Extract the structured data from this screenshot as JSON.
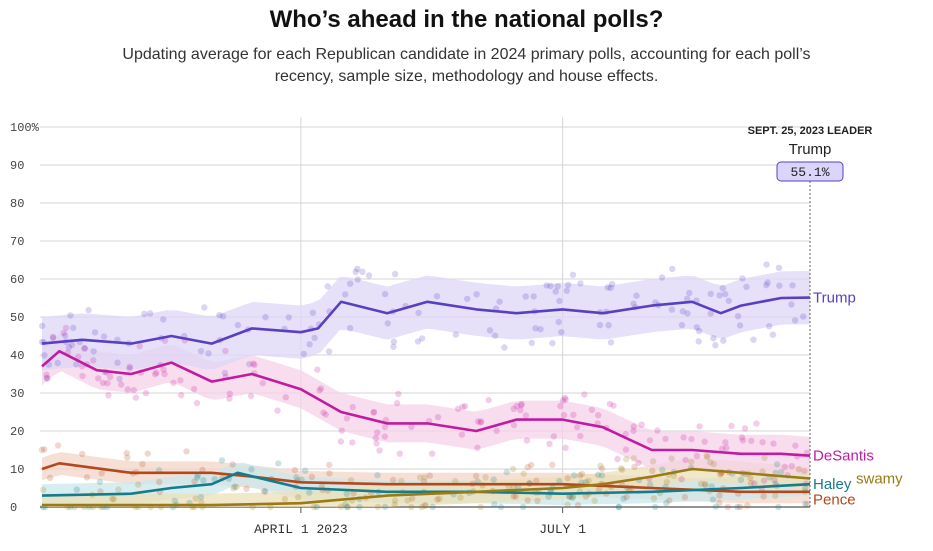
{
  "chart_data": {
    "type": "line",
    "title": "Who’s ahead in the national polls?",
    "subtitle": "Updating average for each Republican candidate in 2024 primary polls, accounting for each poll’s recency, sample size, methodology and house effects.",
    "y_ticks": [
      "100%",
      "90",
      "80",
      "70",
      "60",
      "50",
      "40",
      "30",
      "20",
      "10",
      "0"
    ],
    "ylim": [
      0,
      100
    ],
    "x_ticks": [
      "APRIL 1 2023",
      "JULY 1"
    ],
    "x_tick_dates": [
      "2023-04-01",
      "2023-07-01"
    ],
    "xlim": [
      "2023-01-01",
      "2023-09-25"
    ],
    "grid": true,
    "leader": {
      "heading": "SEPT. 25, 2023 LEADER",
      "name": "Trump",
      "value": "55.1%",
      "date": "2023-09-25"
    },
    "series": [
      {
        "name": "Trump",
        "color": "#5a3fc0",
        "band": "#ddd6f7",
        "x": [
          "2023-01-01",
          "2023-01-15",
          "2023-02-01",
          "2023-02-15",
          "2023-03-01",
          "2023-03-15",
          "2023-04-01",
          "2023-04-07",
          "2023-04-15",
          "2023-05-01",
          "2023-05-15",
          "2023-06-01",
          "2023-06-15",
          "2023-07-01",
          "2023-07-15",
          "2023-08-01",
          "2023-08-15",
          "2023-08-25",
          "2023-09-01",
          "2023-09-15",
          "2023-09-25"
        ],
        "values": [
          43,
          44,
          43,
          45,
          43,
          47,
          46,
          47,
          54,
          51,
          54,
          52,
          51,
          52,
          51,
          53,
          54,
          51,
          53,
          55,
          55.1
        ]
      },
      {
        "name": "DeSantis",
        "color": "#c21b9f",
        "band": "#f6d2ea",
        "x": [
          "2023-01-01",
          "2023-01-07",
          "2023-01-20",
          "2023-02-01",
          "2023-02-15",
          "2023-03-01",
          "2023-03-15",
          "2023-04-01",
          "2023-04-15",
          "2023-05-01",
          "2023-05-15",
          "2023-06-01",
          "2023-06-15",
          "2023-07-01",
          "2023-07-15",
          "2023-08-01",
          "2023-08-15",
          "2023-09-01",
          "2023-09-15",
          "2023-09-25"
        ],
        "values": [
          37,
          41,
          36,
          35,
          38,
          33,
          35,
          31,
          25,
          22,
          22,
          20,
          23,
          23,
          21,
          15,
          15,
          14,
          14,
          13.5
        ]
      },
      {
        "name": "Ramaswamy",
        "color": "#9a7a13",
        "band": "#ecdfb9",
        "x": [
          "2023-01-01",
          "2023-03-01",
          "2023-04-01",
          "2023-05-01",
          "2023-06-01",
          "2023-07-01",
          "2023-07-15",
          "2023-08-01",
          "2023-08-15",
          "2023-09-01",
          "2023-09-25"
        ],
        "values": [
          0.5,
          0.5,
          1,
          3,
          4,
          5,
          6,
          8,
          10,
          9,
          7.5
        ]
      },
      {
        "name": "Haley",
        "color": "#147c8a",
        "band": "#cbe7ea",
        "x": [
          "2023-01-01",
          "2023-02-01",
          "2023-02-15",
          "2023-03-01",
          "2023-03-10",
          "2023-04-01",
          "2023-05-01",
          "2023-06-01",
          "2023-07-01",
          "2023-08-01",
          "2023-09-01",
          "2023-09-25"
        ],
        "values": [
          3,
          3.5,
          5,
          6,
          9,
          5,
          4,
          4,
          3.5,
          4,
          5,
          6
        ]
      },
      {
        "name": "Pence",
        "color": "#b4471c",
        "band": "#f3d6c8",
        "x": [
          "2023-01-01",
          "2023-01-07",
          "2023-02-01",
          "2023-03-01",
          "2023-03-15",
          "2023-04-01",
          "2023-05-01",
          "2023-06-01",
          "2023-07-01",
          "2023-08-01",
          "2023-09-01",
          "2023-09-25"
        ],
        "values": [
          10,
          11.5,
          9,
          9,
          8,
          6.5,
          6,
          6,
          6,
          5,
          4,
          4
        ]
      }
    ],
    "series_labels": [
      "Trump",
      "DeSantis",
      "Haley",
      "swamy",
      "Pence"
    ]
  }
}
